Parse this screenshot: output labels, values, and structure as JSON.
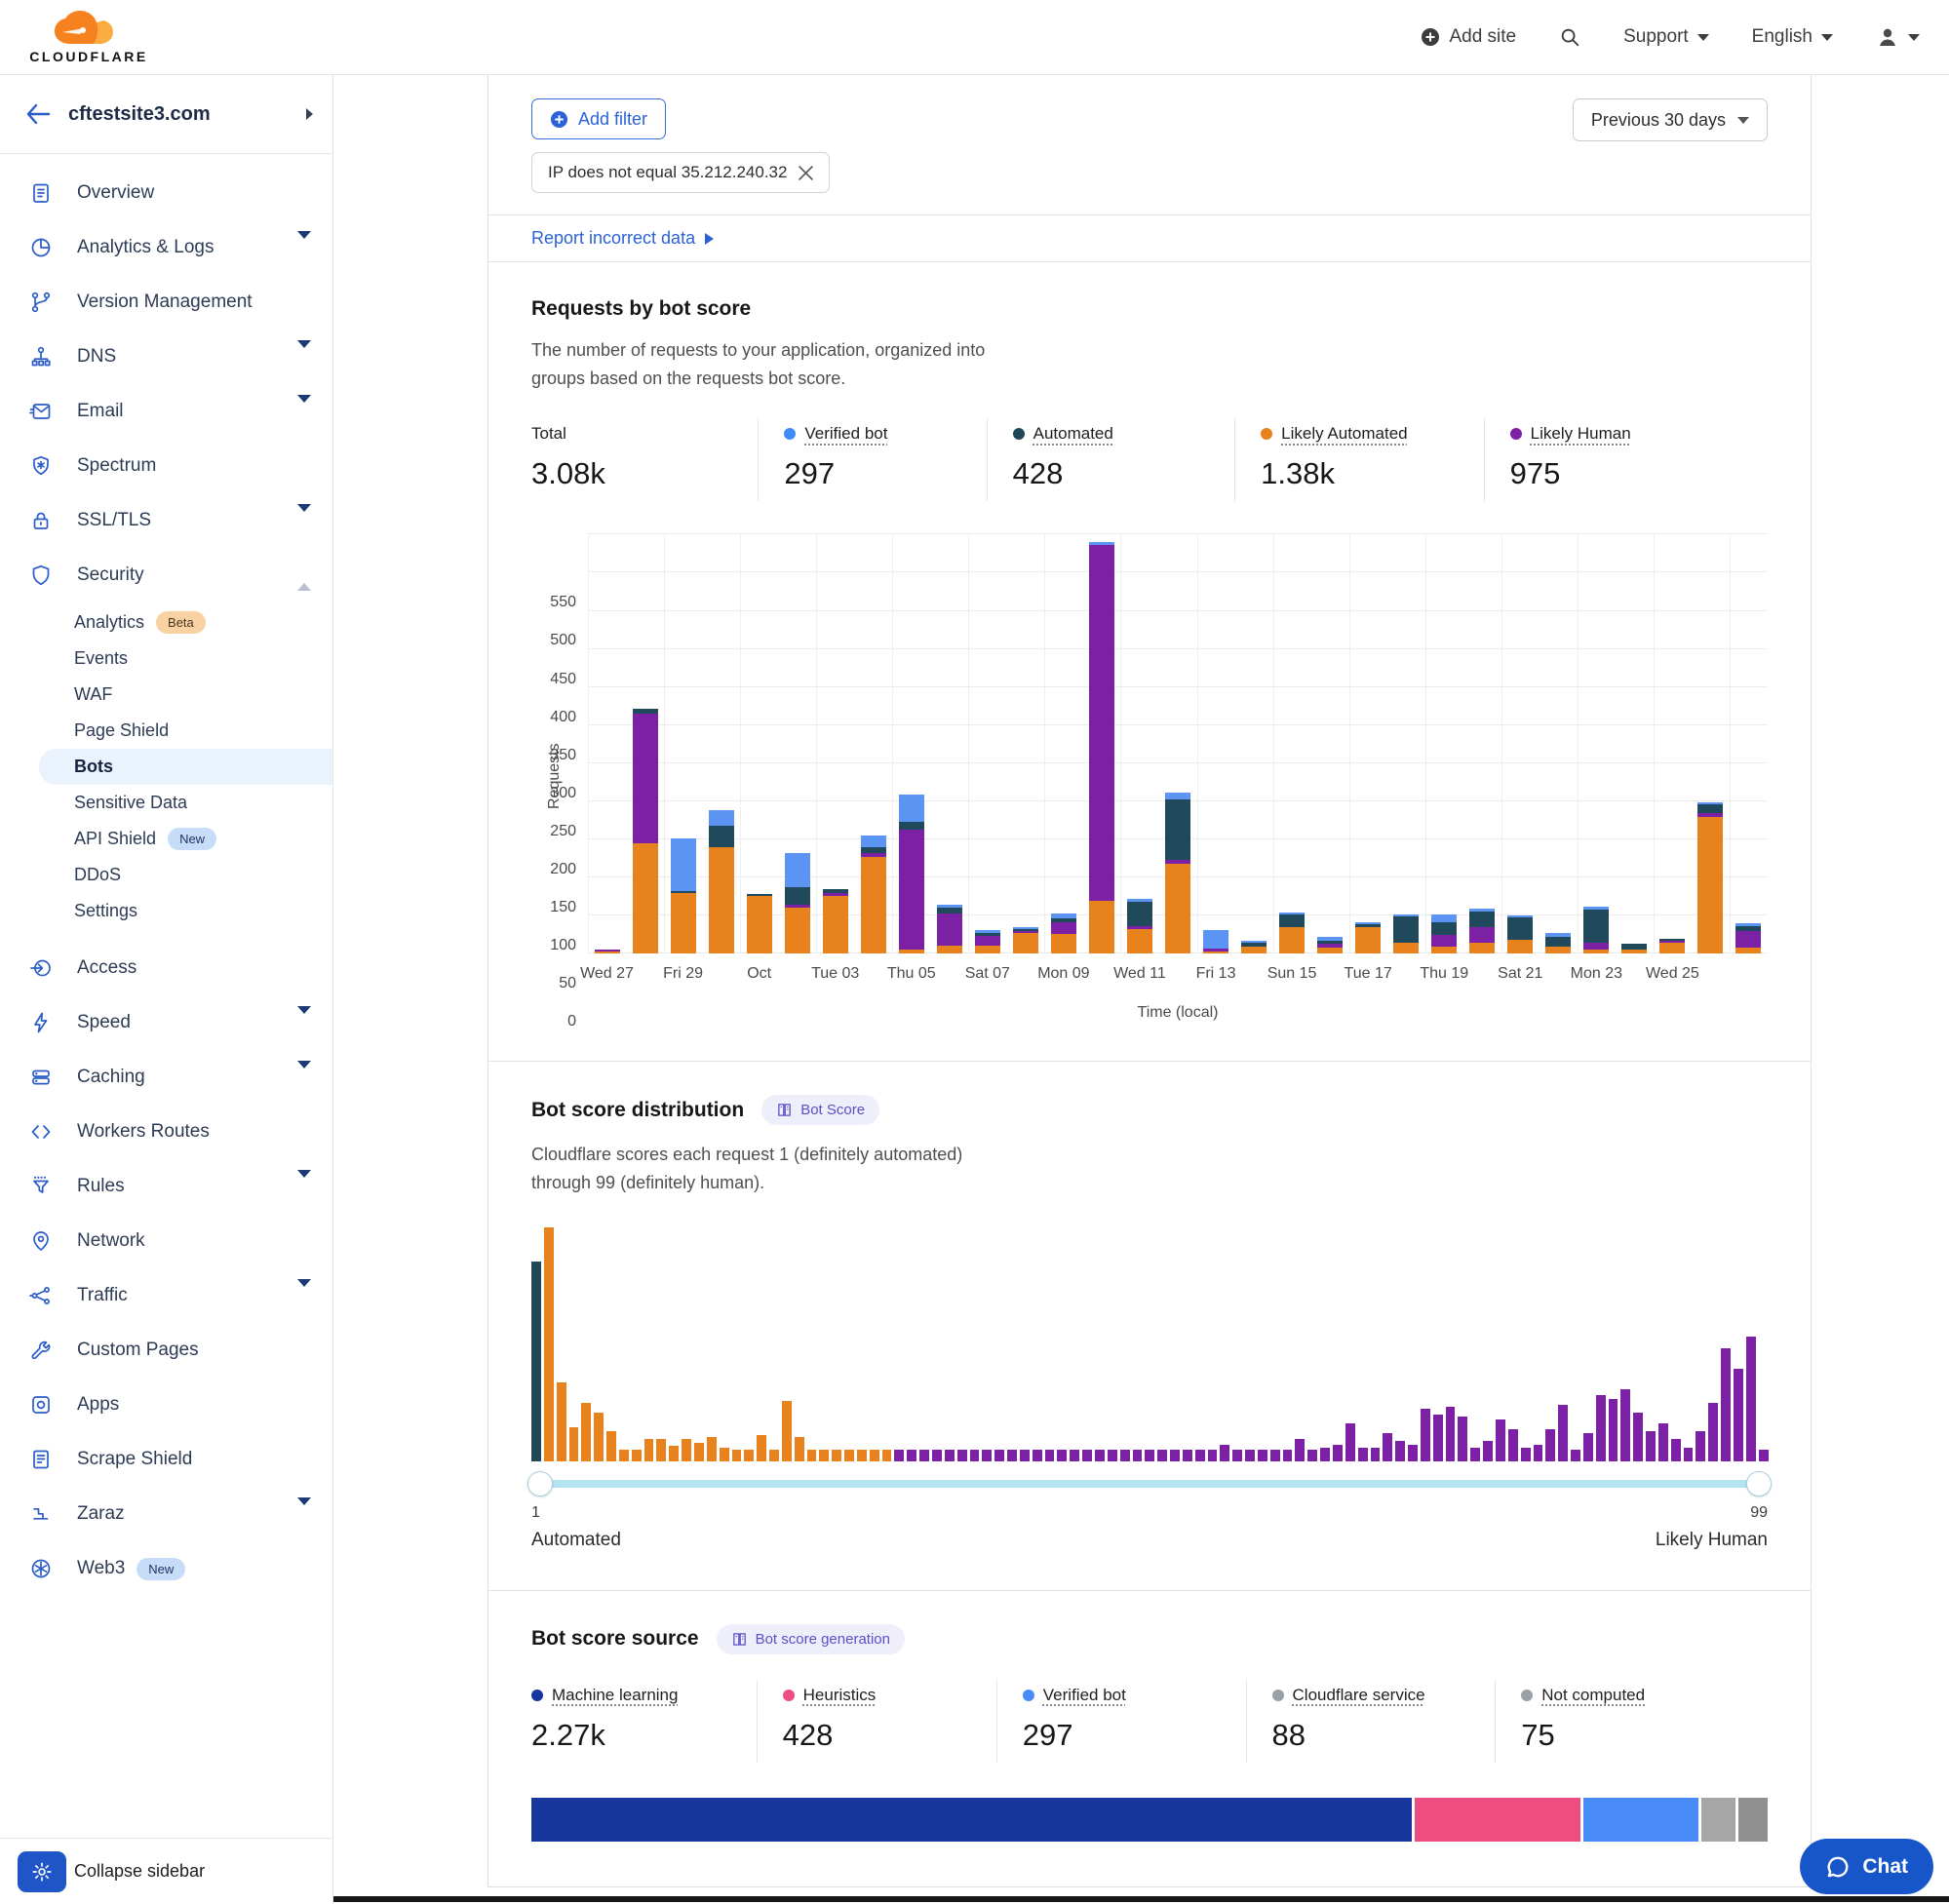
{
  "header": {
    "logo_text": "CLOUDFLARE",
    "add_site": "Add site",
    "support": "Support",
    "language": "English"
  },
  "sidebar": {
    "site": "cftestsite3.com",
    "items": [
      {
        "id": "overview",
        "label": "Overview",
        "icon": "overview",
        "chevron": null,
        "badge": null
      },
      {
        "id": "analytics-logs",
        "label": "Analytics & Logs",
        "icon": "analytics",
        "chevron": "down",
        "badge": null
      },
      {
        "id": "version-management",
        "label": "Version Management",
        "icon": "version",
        "chevron": null,
        "badge": null
      },
      {
        "id": "dns",
        "label": "DNS",
        "icon": "dns",
        "chevron": "down",
        "badge": null
      },
      {
        "id": "email",
        "label": "Email",
        "icon": "email",
        "chevron": "down",
        "badge": null
      },
      {
        "id": "spectrum",
        "label": "Spectrum",
        "icon": "spectrum",
        "chevron": null,
        "badge": null
      },
      {
        "id": "ssl-tls",
        "label": "SSL/TLS",
        "icon": "ssl",
        "chevron": "down",
        "badge": null
      },
      {
        "id": "security",
        "label": "Security",
        "icon": "security",
        "chevron": "up",
        "badge": null,
        "sub": [
          {
            "id": "analytics",
            "label": "Analytics",
            "badge": "Beta",
            "selected": false
          },
          {
            "id": "events",
            "label": "Events",
            "badge": null,
            "selected": false
          },
          {
            "id": "waf",
            "label": "WAF",
            "badge": null,
            "selected": false
          },
          {
            "id": "page-shield",
            "label": "Page Shield",
            "badge": null,
            "selected": false
          },
          {
            "id": "bots",
            "label": "Bots",
            "badge": null,
            "selected": true
          },
          {
            "id": "sensitive-data",
            "label": "Sensitive Data",
            "badge": null,
            "selected": false
          },
          {
            "id": "api-shield",
            "label": "API Shield",
            "badge": "New",
            "selected": false
          },
          {
            "id": "ddos",
            "label": "DDoS",
            "badge": null,
            "selected": false
          },
          {
            "id": "settings",
            "label": "Settings",
            "badge": null,
            "selected": false
          }
        ]
      },
      {
        "id": "access",
        "label": "Access",
        "icon": "access",
        "chevron": null,
        "badge": null
      },
      {
        "id": "speed",
        "label": "Speed",
        "icon": "speed",
        "chevron": "down",
        "badge": null
      },
      {
        "id": "caching",
        "label": "Caching",
        "icon": "caching",
        "chevron": "down",
        "badge": null
      },
      {
        "id": "workers-routes",
        "label": "Workers Routes",
        "icon": "workers",
        "chevron": null,
        "badge": null
      },
      {
        "id": "rules",
        "label": "Rules",
        "icon": "rules",
        "chevron": "down",
        "badge": null
      },
      {
        "id": "network",
        "label": "Network",
        "icon": "network",
        "chevron": null,
        "badge": null
      },
      {
        "id": "traffic",
        "label": "Traffic",
        "icon": "traffic",
        "chevron": "down",
        "badge": null
      },
      {
        "id": "custom-pages",
        "label": "Custom Pages",
        "icon": "wrench",
        "chevron": null,
        "badge": null
      },
      {
        "id": "apps",
        "label": "Apps",
        "icon": "apps",
        "chevron": null,
        "badge": null
      },
      {
        "id": "scrape-shield",
        "label": "Scrape Shield",
        "icon": "scrape",
        "chevron": null,
        "badge": null
      },
      {
        "id": "zaraz",
        "label": "Zaraz",
        "icon": "zaraz",
        "chevron": "down",
        "badge": null
      },
      {
        "id": "web3",
        "label": "Web3",
        "icon": "web3",
        "chevron": null,
        "badge": "New"
      }
    ],
    "collapse_label": "Collapse sidebar"
  },
  "toolbar": {
    "add_filter": "Add filter",
    "filter_chip": "IP does not equal 35.212.240.32",
    "range": "Previous 30 days",
    "report_link": "Report incorrect data"
  },
  "requests_section": {
    "title": "Requests by bot score",
    "description_line1": "The number of requests to your application, organized into",
    "description_line2": "groups based on the requests bot score.",
    "stats": [
      {
        "label": "Total",
        "value": "3.08k",
        "color": null
      },
      {
        "label": "Verified bot",
        "value": "297",
        "color": "#3F8BF7"
      },
      {
        "label": "Automated",
        "value": "428",
        "color": "#1F4858"
      },
      {
        "label": "Likely Automated",
        "value": "1.38k",
        "color": "#E8821D"
      },
      {
        "label": "Likely Human",
        "value": "975",
        "color": "#7C21A6"
      }
    ]
  },
  "distribution_section": {
    "title": "Bot score distribution",
    "badge": "Bot Score",
    "description_line1": "Cloudflare scores each request 1 (definitely automated)",
    "description_line2": "through 99 (definitely human).",
    "slider": {
      "min_label": "1",
      "max_label": "99",
      "min_caption": "Automated",
      "max_caption": "Likely Human"
    }
  },
  "source_section": {
    "title": "Bot score source",
    "badge": "Bot score generation",
    "stats": [
      {
        "label": "Machine learning",
        "value": "2.27k",
        "color": "#17379E"
      },
      {
        "label": "Heuristics",
        "value": "428",
        "color": "#EE4D82"
      },
      {
        "label": "Verified bot",
        "value": "297",
        "color": "#4A8CF7"
      },
      {
        "label": "Cloudflare service",
        "value": "88",
        "color": "#9AA0A8"
      },
      {
        "label": "Not computed",
        "value": "75",
        "color": "#9AA0A8"
      }
    ]
  },
  "chat_label": "Chat",
  "chart_data": [
    {
      "type": "bar",
      "stacked": true,
      "title": "Requests by bot score",
      "xlabel": "Time (local)",
      "ylabel": "Requests",
      "ylim": [
        0,
        550
      ],
      "ytick_step": 50,
      "num_bars": 31,
      "x_tick_labels": [
        "Wed 27",
        "Fri 29",
        "Oct",
        "Tue 03",
        "Thu 05",
        "Sat 07",
        "Mon 09",
        "Wed 11",
        "Fri 13",
        "Sun 15",
        "Tue 17",
        "Thu 19",
        "Sat 21",
        "Mon 23",
        "Wed 25"
      ],
      "x_tick_every": 2,
      "series": [
        {
          "name": "Likely Automated",
          "color": "#E8821D",
          "values": [
            3,
            145,
            80,
            140,
            76,
            60,
            76,
            127,
            5,
            11,
            11,
            27,
            26,
            70,
            33,
            118,
            2,
            10,
            35,
            8,
            35,
            15,
            10,
            15,
            18,
            10,
            5,
            5,
            15,
            180,
            8
          ]
        },
        {
          "name": "Likely Human",
          "color": "#7C21A6",
          "values": [
            1,
            170,
            0,
            0,
            0,
            4,
            4,
            5,
            158,
            42,
            13,
            2,
            16,
            466,
            3,
            5,
            4,
            0,
            0,
            5,
            0,
            0,
            15,
            20,
            0,
            0,
            10,
            0,
            1,
            5,
            22
          ]
        },
        {
          "name": "Automated",
          "color": "#20495C",
          "values": [
            0,
            7,
            2,
            28,
            3,
            23,
            5,
            8,
            10,
            7,
            3,
            2,
            5,
            0,
            32,
            79,
            0,
            5,
            16,
            4,
            4,
            34,
            17,
            20,
            30,
            12,
            43,
            8,
            1,
            11,
            6
          ]
        },
        {
          "name": "Verified bot",
          "color": "#5B94F2",
          "values": [
            0,
            0,
            69,
            20,
            0,
            45,
            0,
            15,
            36,
            5,
            4,
            2,
            6,
            4,
            4,
            9,
            24,
            2,
            1,
            5,
            1,
            2,
            10,
            4,
            2,
            5,
            4,
            0,
            0,
            2,
            4
          ]
        }
      ]
    },
    {
      "type": "bar",
      "title": "Bot score distribution",
      "x_range": [
        1,
        99
      ],
      "scale_note": "relative heights, unlabeled y axis, max = 232",
      "color_rules": {
        "score_1": "#1F4858",
        "scores_2_29": "#E8821D",
        "scores_30_99": "#7C21A6"
      },
      "relative_heights": [
        198,
        232,
        78,
        34,
        58,
        48,
        30,
        12,
        12,
        22,
        22,
        15,
        22,
        18,
        24,
        14,
        12,
        12,
        26,
        12,
        60,
        24,
        12,
        12,
        12,
        12,
        12,
        12,
        12,
        12,
        12,
        12,
        12,
        12,
        12,
        12,
        12,
        12,
        12,
        12,
        12,
        12,
        12,
        12,
        12,
        12,
        12,
        12,
        12,
        12,
        12,
        12,
        12,
        12,
        12,
        16,
        12,
        12,
        12,
        12,
        12,
        22,
        12,
        14,
        16,
        38,
        14,
        14,
        28,
        20,
        16,
        52,
        46,
        54,
        44,
        14,
        20,
        42,
        32,
        14,
        16,
        32,
        56,
        12,
        28,
        66,
        62,
        72,
        48,
        30,
        38,
        22,
        14,
        30,
        58,
        112,
        92,
        124,
        12
      ]
    },
    {
      "type": "stacked-horizontal-bar",
      "title": "Bot score source",
      "segments": [
        {
          "name": "Machine learning",
          "value": 2270,
          "color": "#17379E"
        },
        {
          "name": "Heuristics",
          "value": 428,
          "color": "#EE4D82"
        },
        {
          "name": "Verified bot",
          "value": 297,
          "color": "#4A8CF7"
        },
        {
          "name": "Cloudflare service",
          "value": 88,
          "color": "#A6A6A6"
        },
        {
          "name": "Not computed",
          "value": 75,
          "color": "#8F8F8F"
        }
      ]
    }
  ]
}
